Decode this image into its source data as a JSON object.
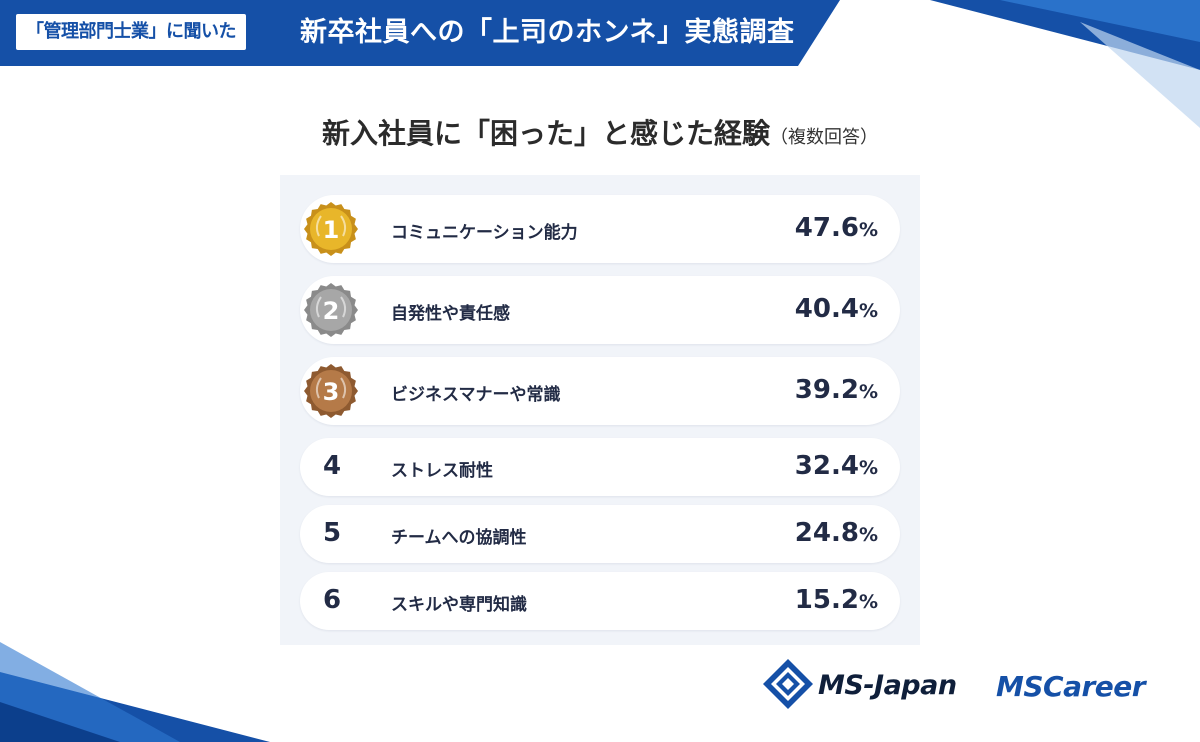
{
  "header": {
    "tag": "「管理部門士業」に聞いた",
    "title": "新卒社員への「上司のホンネ」実態調査"
  },
  "chart_title": {
    "main": "新入社員に「困った」と感じた経験",
    "sub": "（複数回答）"
  },
  "colors": {
    "brand_blue": "#1550a7",
    "gold": "#e8b62a",
    "silver": "#a7a7a7",
    "bronze": "#b57a48",
    "text": "#222b45",
    "panel_bg": "#f1f4f9"
  },
  "chart_data": {
    "type": "table",
    "title": "新入社員に「困った」と感じた経験",
    "subtitle": "（複数回答）",
    "unit": "%",
    "rows": [
      {
        "rank": "1",
        "label": "コミュニケーション能力",
        "value": 47.6,
        "value_text": "47.6",
        "medal": "gold"
      },
      {
        "rank": "2",
        "label": "自発性や責任感",
        "value": 40.4,
        "value_text": "40.4",
        "medal": "silver"
      },
      {
        "rank": "3",
        "label": "ビジネスマナーや常識",
        "value": 39.2,
        "value_text": "39.2",
        "medal": "bronze"
      },
      {
        "rank": "4",
        "label": "ストレス耐性",
        "value": 32.4,
        "value_text": "32.4",
        "medal": ""
      },
      {
        "rank": "5",
        "label": "チームへの協調性",
        "value": 24.8,
        "value_text": "24.8",
        "medal": ""
      },
      {
        "rank": "6",
        "label": "スキルや専門知識",
        "value": 15.2,
        "value_text": "15.2",
        "medal": ""
      }
    ]
  },
  "logos": {
    "ms_japan": "MS-Japan",
    "ms_career": "MSCareer"
  },
  "icons": {
    "medal": "laurel-medal-icon",
    "logo_mark": "ms-japan-diamond-icon"
  }
}
